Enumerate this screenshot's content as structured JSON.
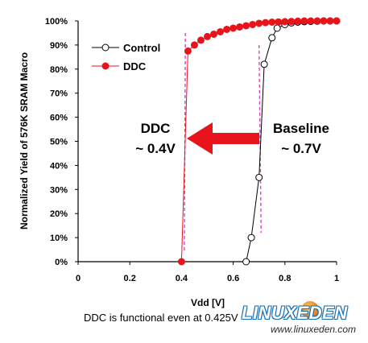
{
  "chart_data": {
    "type": "line",
    "xlabel": "Vdd [V]",
    "ylabel": "Normalized Yield of 576K SRAM Macro",
    "caption": "DDC is functional even at 0.425V",
    "x_ticks": [
      "0",
      "0.2",
      "0.4",
      "0.6",
      "0.8",
      "1"
    ],
    "y_ticks": [
      "0%",
      "10%",
      "20%",
      "30%",
      "40%",
      "50%",
      "60%",
      "70%",
      "80%",
      "90%",
      "100%"
    ],
    "xlim": [
      0,
      1
    ],
    "ylim": [
      0,
      100
    ],
    "grid": false,
    "legend_position": "upper-left",
    "series": [
      {
        "name": "Control",
        "marker": "open-circle",
        "color": "#000000",
        "x": [
          0.65,
          0.67,
          0.7,
          0.72,
          0.75,
          0.77,
          0.8,
          0.825,
          0.85,
          0.875,
          0.9,
          0.925,
          0.95,
          0.975,
          1.0
        ],
        "y": [
          0,
          10,
          35,
          82,
          93,
          97,
          98.5,
          99.2,
          99.5,
          99.7,
          99.8,
          99.9,
          100,
          100,
          100
        ]
      },
      {
        "name": "DDC",
        "marker": "filled-circle",
        "color": "#e8141c",
        "x": [
          0.4,
          0.425,
          0.45,
          0.475,
          0.5,
          0.525,
          0.55,
          0.575,
          0.6,
          0.625,
          0.65,
          0.675,
          0.7,
          0.725,
          0.75,
          0.775,
          0.8,
          0.825,
          0.85,
          0.875,
          0.9,
          0.925,
          0.95,
          0.975,
          1.0
        ],
        "y": [
          0,
          87.5,
          90,
          92,
          93.5,
          94.5,
          95.5,
          96.5,
          97,
          97.5,
          98,
          98.5,
          99,
          99.3,
          99.5,
          99.6,
          99.7,
          99.8,
          99.9,
          100,
          100,
          100,
          100,
          100,
          100
        ]
      }
    ],
    "annotations": {
      "ddc_label_line1": "DDC",
      "ddc_label_line2": "~ 0.4V",
      "baseline_label_line1": "Baseline",
      "baseline_label_line2": "~ 0.7V",
      "ddc_marker_x": 0.415,
      "baseline_marker_x": 0.7,
      "arrow_color": "#e8141c",
      "marker_line_color": "#e040c8"
    }
  },
  "watermark": {
    "logo_text": "LINUXEDEN",
    "url": "www.linuxeden.com"
  }
}
